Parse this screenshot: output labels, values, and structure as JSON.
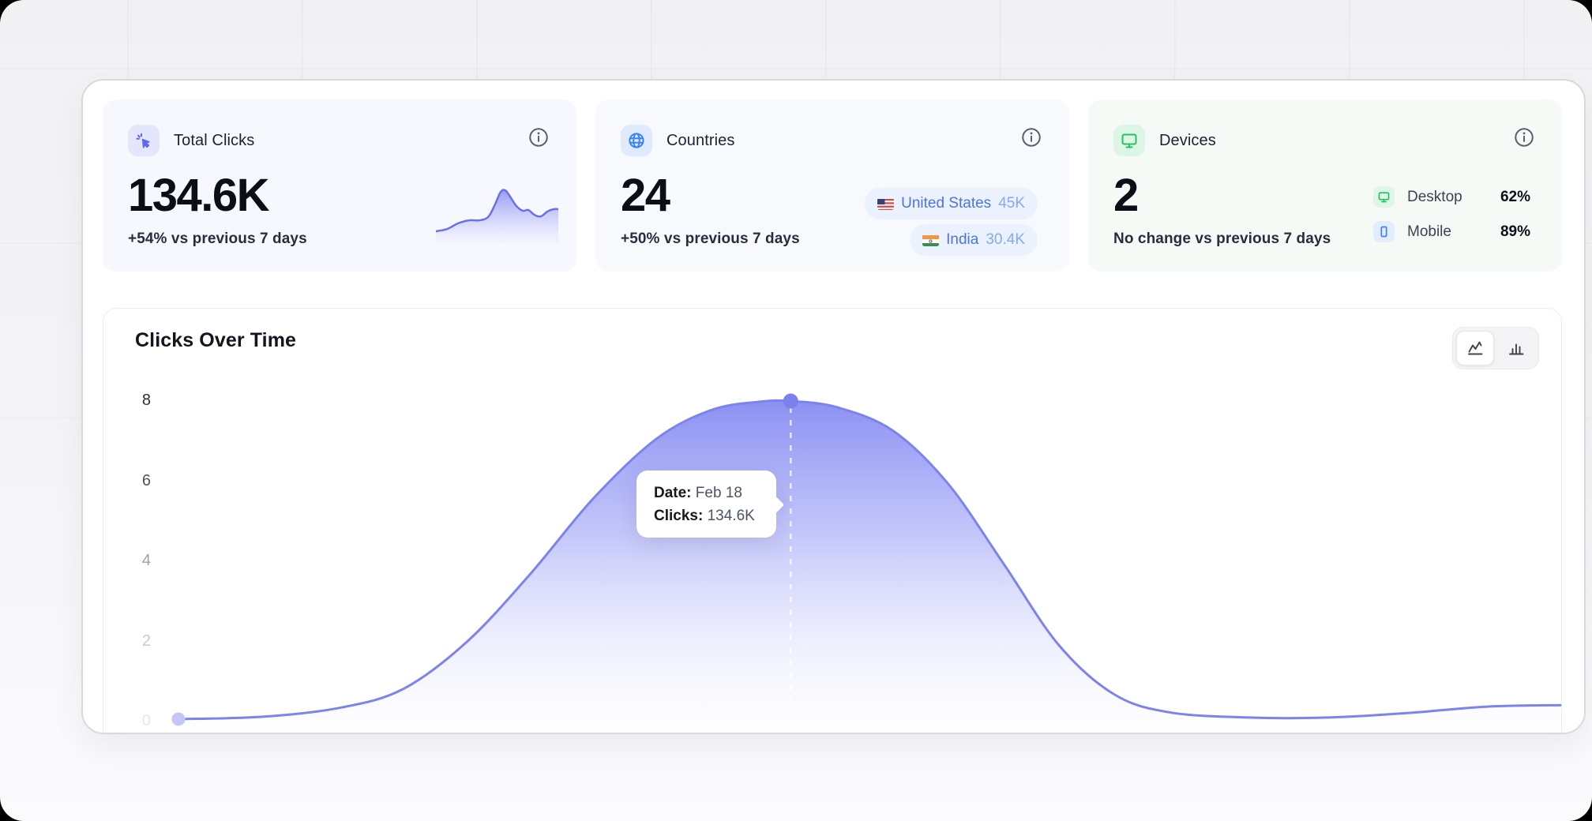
{
  "cards": {
    "total_clicks": {
      "title": "Total Clicks",
      "value": "134.6K",
      "delta": "+54% vs previous 7 days",
      "icon": "cursor-click-icon",
      "accent": "#6366f1"
    },
    "countries": {
      "title": "Countries",
      "value": "24",
      "delta": "+50% vs previous 7 days",
      "icon": "globe-icon",
      "accent": "#3b82f6",
      "items": [
        {
          "flag": "us-flag-icon",
          "name": "United States",
          "value": "45K"
        },
        {
          "flag": "india-flag-icon",
          "name": "India",
          "value": "30.4K"
        }
      ]
    },
    "devices": {
      "title": "Devices",
      "value": "2",
      "delta": "No change vs previous 7 days",
      "icon": "monitor-icon",
      "accent": "#22c55e",
      "rows": [
        {
          "icon": "monitor-icon",
          "label": "Desktop",
          "value": "62%"
        },
        {
          "icon": "smartphone-icon",
          "label": "Mobile",
          "value": "89%"
        }
      ]
    }
  },
  "chart": {
    "title": "Clicks Over Time",
    "toggles": [
      "line-chart-view",
      "bar-chart-view"
    ],
    "active_toggle": "line-chart-view",
    "tooltip": {
      "date_label": "Date:",
      "date_value": "Feb 18",
      "clicks_label": "Clicks:",
      "clicks_value": "134.6K"
    },
    "colors": {
      "stroke": "#7d83ee",
      "fill_top": "rgba(135,140,242,0.96)",
      "peak_dot": "#7b81ec",
      "start_dot": "#c3c7f6"
    }
  },
  "chart_data": {
    "type": "area",
    "title": "Clicks Over Time",
    "ylabel": "",
    "ylim": [
      0,
      8
    ],
    "yticks": [
      8,
      6,
      4,
      2,
      0
    ],
    "yticks_display": [
      "8",
      "6",
      "4",
      "2",
      "0"
    ],
    "grid": false,
    "legend": "none",
    "series": [
      {
        "name": "Clicks",
        "highlight_index": 10,
        "highlight": {
          "date": "Feb 18",
          "clicks": "134.6K",
          "value": 8
        },
        "points": [
          [
            0.0,
            0.06
          ],
          [
            0.061,
            0.12
          ],
          [
            0.118,
            0.35
          ],
          [
            0.163,
            0.82
          ],
          [
            0.209,
            2.0
          ],
          [
            0.255,
            3.7
          ],
          [
            0.3,
            5.56
          ],
          [
            0.346,
            7.06
          ],
          [
            0.386,
            7.78
          ],
          [
            0.42,
            7.98
          ],
          [
            0.443,
            8.0
          ],
          [
            0.477,
            7.84
          ],
          [
            0.517,
            7.26
          ],
          [
            0.557,
            5.93
          ],
          [
            0.597,
            3.94
          ],
          [
            0.637,
            1.91
          ],
          [
            0.677,
            0.68
          ],
          [
            0.717,
            0.23
          ],
          [
            0.774,
            0.1
          ],
          [
            0.832,
            0.1
          ],
          [
            0.889,
            0.21
          ],
          [
            0.946,
            0.37
          ],
          [
            1.0,
            0.41
          ]
        ]
      }
    ],
    "sparkline": {
      "card": "Total Clicks",
      "type": "area",
      "points": [
        [
          0.0,
          0.145
        ],
        [
          0.09,
          0.19
        ],
        [
          0.18,
          0.306
        ],
        [
          0.27,
          0.37
        ],
        [
          0.355,
          0.37
        ],
        [
          0.426,
          0.435
        ],
        [
          0.477,
          0.66
        ],
        [
          0.529,
          0.95
        ],
        [
          0.568,
          0.98
        ],
        [
          0.606,
          0.855
        ],
        [
          0.658,
          0.66
        ],
        [
          0.71,
          0.565
        ],
        [
          0.755,
          0.58
        ],
        [
          0.806,
          0.48
        ],
        [
          0.858,
          0.45
        ],
        [
          0.91,
          0.548
        ],
        [
          0.961,
          0.597
        ],
        [
          1.0,
          0.597
        ]
      ]
    }
  }
}
